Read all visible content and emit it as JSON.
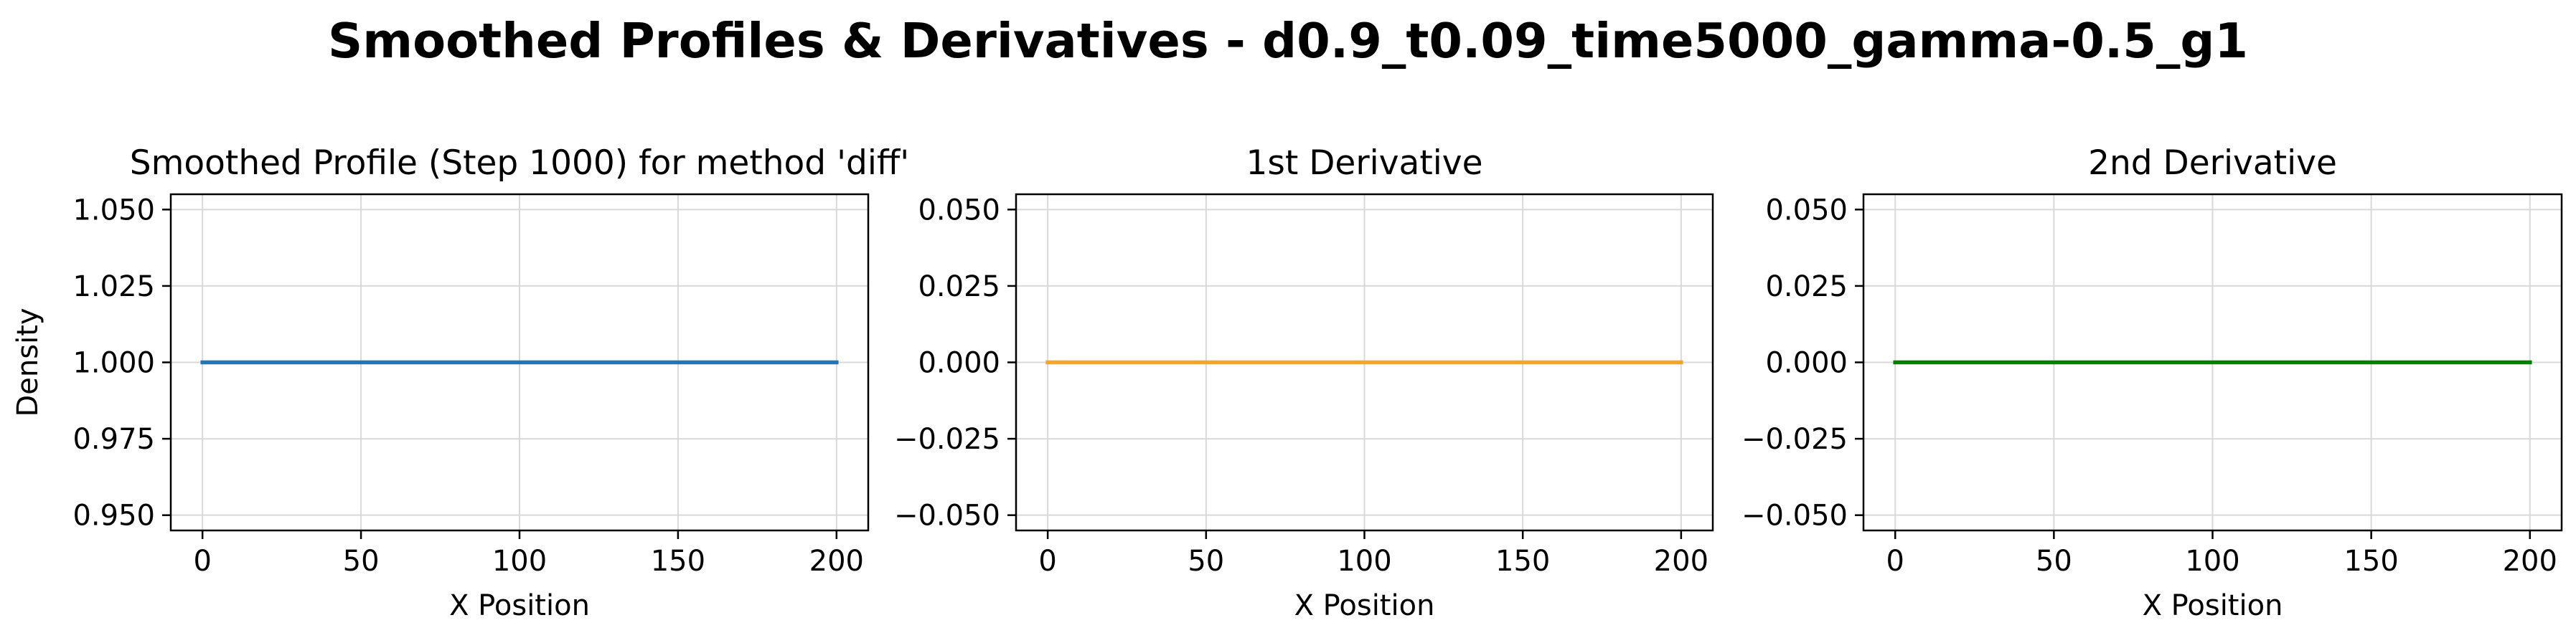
{
  "figure": {
    "suptitle": "Smoothed Profiles & Derivatives - d0.9_t0.09_time5000_gamma-0.5_g1"
  },
  "chart_data": [
    {
      "type": "line",
      "title": "Smoothed Profile (Step 1000) for method 'diff'",
      "xlabel": "X Position",
      "ylabel": "Density",
      "xlim": [
        -10,
        210
      ],
      "ylim": [
        0.945,
        1.055
      ],
      "xticks": [
        0,
        50,
        100,
        150,
        200
      ],
      "xtick_labels": [
        "0",
        "50",
        "100",
        "150",
        "200"
      ],
      "yticks": [
        0.95,
        0.975,
        1.0,
        1.025,
        1.05
      ],
      "ytick_labels": [
        "0.950",
        "0.975",
        "1.000",
        "1.025",
        "1.050"
      ],
      "grid": true,
      "series": [
        {
          "color": "#1f77b4",
          "x": [
            0,
            200
          ],
          "y": [
            1.0,
            1.0
          ]
        }
      ]
    },
    {
      "type": "line",
      "title": "1st Derivative",
      "xlabel": "X Position",
      "ylabel": "",
      "xlim": [
        -10,
        210
      ],
      "ylim": [
        -0.055,
        0.055
      ],
      "xticks": [
        0,
        50,
        100,
        150,
        200
      ],
      "xtick_labels": [
        "0",
        "50",
        "100",
        "150",
        "200"
      ],
      "yticks": [
        -0.05,
        -0.025,
        0.0,
        0.025,
        0.05
      ],
      "ytick_labels": [
        "−0.050",
        "−0.025",
        "0.000",
        "0.025",
        "0.050"
      ],
      "grid": true,
      "series": [
        {
          "color": "#f5a623",
          "x": [
            0,
            200
          ],
          "y": [
            0.0,
            0.0
          ]
        }
      ]
    },
    {
      "type": "line",
      "title": "2nd Derivative",
      "xlabel": "X Position",
      "ylabel": "",
      "xlim": [
        -10,
        210
      ],
      "ylim": [
        -0.055,
        0.055
      ],
      "xticks": [
        0,
        50,
        100,
        150,
        200
      ],
      "xtick_labels": [
        "0",
        "50",
        "100",
        "150",
        "200"
      ],
      "yticks": [
        -0.05,
        -0.025,
        0.0,
        0.025,
        0.05
      ],
      "ytick_labels": [
        "−0.050",
        "−0.025",
        "0.000",
        "0.025",
        "0.050"
      ],
      "grid": true,
      "series": [
        {
          "color": "#008000",
          "x": [
            0,
            200
          ],
          "y": [
            0.0,
            0.0
          ]
        }
      ]
    }
  ]
}
